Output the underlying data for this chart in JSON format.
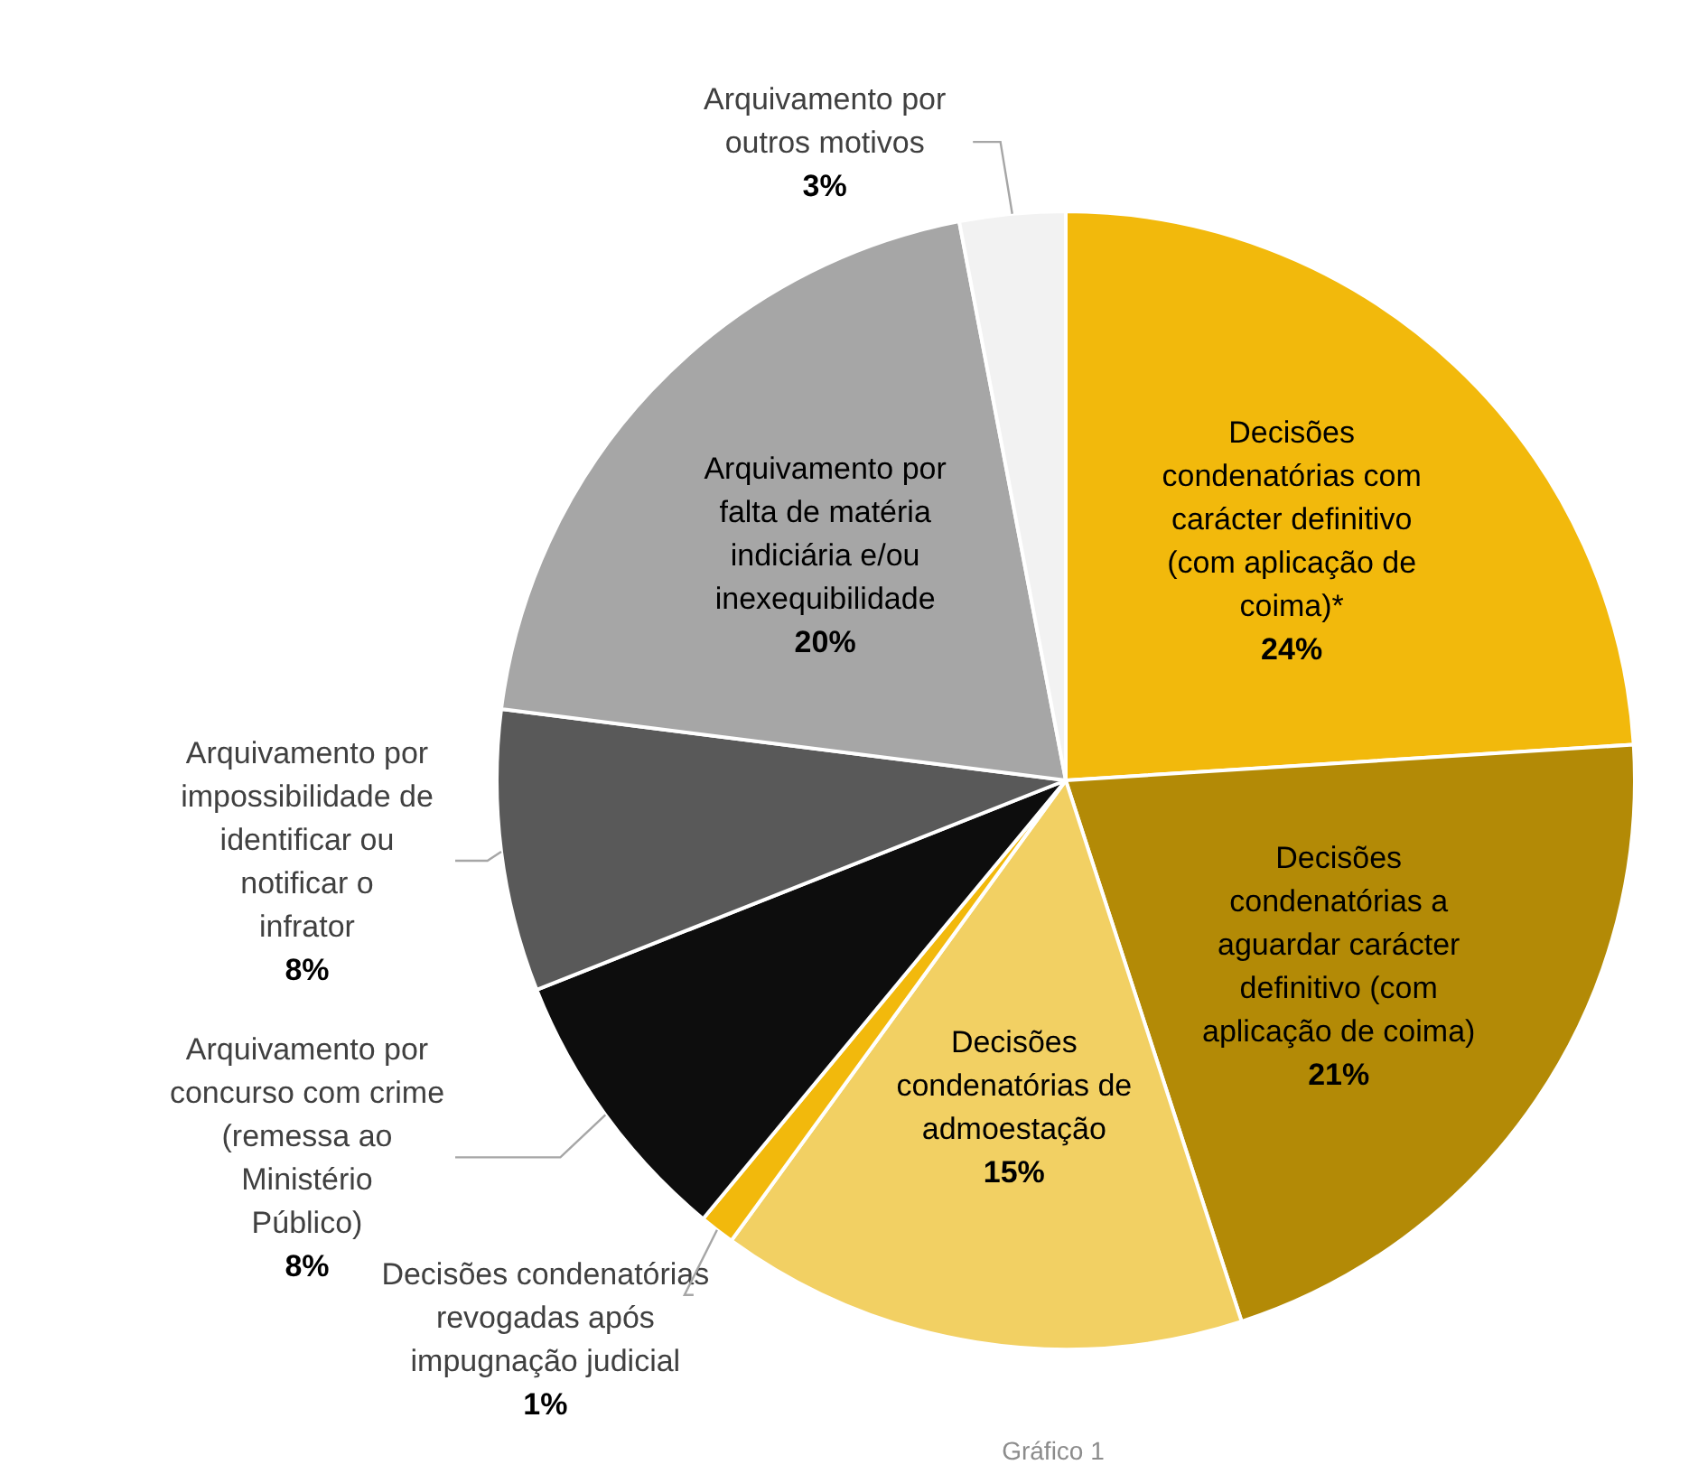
{
  "chart_data": {
    "type": "pie",
    "categories": [
      "Decisões condenatórias com carácter definitivo (com aplicação de coima)*",
      "Decisões condenatórias a aguardar carácter definitivo (com aplicação de coima)",
      "Decisões condenatórias de admoestação",
      "Decisões condenatórias revogadas após impugnação judicial",
      "Arquivamento por concurso com crime (remessa ao Ministério Público)",
      "Arquivamento por impossibilidade de identificar ou notificar o infrator",
      "Arquivamento por falta de matéria indiciária e/ou inexequibilidade",
      "Arquivamento por outros motivos"
    ],
    "values": [
      24,
      21,
      15,
      1,
      8,
      8,
      20,
      3
    ],
    "value_labels": [
      "24%",
      "21%",
      "15%",
      "1%",
      "8%",
      "8%",
      "20%",
      "3%"
    ],
    "colors": [
      "#f2b90c",
      "#b38a06",
      "#f2d063",
      "#f2b90c",
      "#0d0d0d",
      "#595959",
      "#a6a6a6",
      "#f2f2f2"
    ],
    "annotations": [
      "Gráfico 1"
    ]
  }
}
